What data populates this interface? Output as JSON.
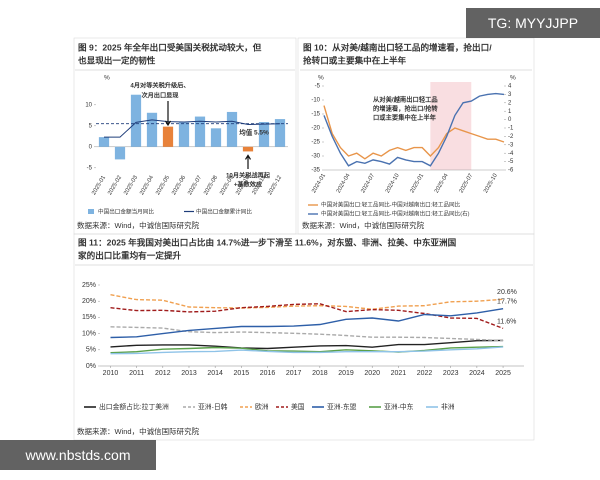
{
  "watermarks": [
    "TG: MYYJJPP",
    "www.nbstds.com"
  ],
  "chart_data": [
    {
      "type": "bar",
      "title": [
        "图 9：2025 年全年出口受美国关税扰动较大，但",
        "也显现出一定的韧性"
      ],
      "y_unit": "%",
      "categories": [
        "2025-01",
        "2025-02",
        "2025-03",
        "2025-04",
        "2025-05",
        "2025-06",
        "2025-07",
        "2025-08",
        "2025-09",
        "2025-10",
        "2025-11",
        "2025-12"
      ],
      "series": [
        {
          "name": "中国出口金额当月同比",
          "type": "bar",
          "color": "#7eb3e0",
          "colors": [
            "#7eb3e0",
            "#7eb3e0",
            "#7eb3e0",
            "#7eb3e0",
            "#e8823a",
            "#7eb3e0",
            "#7eb3e0",
            "#7eb3e0",
            "#7eb3e0",
            "#e8823a",
            "#7eb3e0",
            "#7eb3e0"
          ],
          "values": [
            2.3,
            -3.0,
            12.4,
            8.1,
            4.8,
            5.8,
            7.2,
            4.4,
            8.3,
            -1.1,
            5.9,
            6.6
          ]
        },
        {
          "name": "中国出口金额累计同比",
          "type": "line",
          "color": "#1f3d7a",
          "values": [
            2.3,
            2.3,
            5.8,
            6.4,
            6.0,
            5.9,
            6.1,
            5.9,
            6.1,
            5.3,
            5.4,
            5.5
          ]
        }
      ],
      "mean": 5.5,
      "mean_label": "均值 5.5%",
      "annotations": [
        "4月对等关税升级后、",
        "次月出口显现",
        "10月关税战再起",
        "+基数效应"
      ],
      "ylim": [
        -6,
        14
      ],
      "yticks": [
        -5,
        0,
        5,
        10
      ],
      "source": "数据来源：Wind，中诚信国际研究院"
    },
    {
      "type": "line",
      "title": [
        "图 10：从对美/越南出口轻工品的增速看，抢出口/",
        "抢转口或主要集中在上半年"
      ],
      "y_unit": "%",
      "y2_unit": "%",
      "categories": [
        "2024-01",
        null,
        null,
        "2024-04",
        null,
        null,
        "2024-07",
        null,
        null,
        "2024-10",
        null,
        null,
        "2025-01",
        null,
        null,
        "2025-04",
        null,
        null,
        "2025-07",
        null,
        null,
        "2025-10",
        null
      ],
      "series": [
        {
          "name": "中国对美国出口:轻工品同比-中国对越南出口:轻工品同比",
          "color": "#e8954a",
          "values": [
            -12,
            -22,
            -27,
            -30,
            -29,
            -31,
            -29,
            -30,
            -28,
            -27,
            -28,
            -27,
            -27,
            -30,
            -27,
            -22,
            -20,
            -21,
            -22,
            -23,
            -24,
            -24,
            -25
          ]
        },
        {
          "name": "中国对美国出口:轻工品同比-中国对越南出口:轻工品同比(右)",
          "color": "#4a72b0",
          "axis": "y2",
          "values": [
            0.5,
            -2,
            -4,
            -5.5,
            -5,
            -5.2,
            -4.8,
            -5,
            -5.3,
            -4.5,
            -4.8,
            -5,
            -5,
            -5.5,
            -4,
            -2,
            0.5,
            2,
            2.2,
            2.8,
            3,
            3.1,
            3.0
          ]
        }
      ],
      "annotations": [
        "从对美/越南出口轻工品",
        "的增速看，抢出口/抢转",
        "口或主要集中在上半年"
      ],
      "ylim": [
        -35,
        -5
      ],
      "yticks": [
        -5,
        -10,
        -15,
        -20,
        -25,
        -30,
        -35
      ],
      "y2lim": [
        -6,
        4
      ],
      "y2ticks": [
        4,
        3,
        2,
        1,
        0,
        -1,
        -2,
        -3,
        -4,
        -5,
        -6
      ],
      "source": "数据来源：Wind，中诚信国际研究院"
    },
    {
      "type": "line",
      "title": [
        "图 11：2025 年我国对美出口占比由 14.7%进一步下滑至 11.6%，对东盟、非洲、拉美、中东亚洲国",
        "家的出口比重均有一定提升"
      ],
      "x": [
        2010,
        2011,
        2012,
        2013,
        2014,
        2015,
        2016,
        2017,
        2018,
        2019,
        2020,
        2021,
        2022,
        2023,
        2024,
        2025
      ],
      "series": [
        {
          "name": "出口金额占比:拉丁美洲",
          "color": "#222222",
          "dash": false,
          "values": [
            5.9,
            6.4,
            6.5,
            6.5,
            6.1,
            5.6,
            5.4,
            5.8,
            6.2,
            6.3,
            5.8,
            6.6,
            6.6,
            7.2,
            7.8,
            7.9
          ]
        },
        {
          "name": "亚洲-日韩",
          "color": "#aaaaaa",
          "dash": true,
          "values": [
            12.1,
            11.9,
            11.7,
            10.6,
            10.3,
            10.5,
            10.3,
            10.1,
            9.8,
            9.4,
            8.9,
            8.9,
            8.8,
            8.5,
            8.2,
            7.8
          ]
        },
        {
          "name": "欧洲",
          "color": "#f0a050",
          "dash": true,
          "values": [
            22,
            20.5,
            20.3,
            18.2,
            18,
            17.9,
            18.1,
            18.5,
            18.6,
            18.4,
            17.5,
            18.5,
            18.6,
            19.8,
            20,
            20.6
          ],
          "value_labels": [
            null,
            null,
            null,
            null,
            null,
            null,
            null,
            null,
            null,
            null,
            null,
            null,
            null,
            null,
            null,
            "20.6%"
          ]
        },
        {
          "name": "美国",
          "color": "#a01c1c",
          "dash": true,
          "values": [
            18,
            17.1,
            17.2,
            16.7,
            16.9,
            18,
            18.4,
            19,
            19.2,
            16.8,
            17.4,
            17.2,
            16.2,
            14.8,
            14.7,
            11.6
          ],
          "value_labels": [
            null,
            null,
            null,
            null,
            null,
            null,
            null,
            null,
            null,
            null,
            null,
            null,
            null,
            null,
            null,
            "11.6%"
          ]
        },
        {
          "name": "亚洲-东盟",
          "color": "#2e5fa8",
          "dash": false,
          "values": [
            8.8,
            9,
            10,
            11,
            11.6,
            12.2,
            12.2,
            12.3,
            12.8,
            14.4,
            14.8,
            13.9,
            15.9,
            15.5,
            16.4,
            17.7
          ],
          "value_labels": [
            null,
            null,
            null,
            null,
            null,
            null,
            null,
            null,
            null,
            null,
            null,
            null,
            null,
            null,
            null,
            "17.7%"
          ]
        },
        {
          "name": "亚洲-中东",
          "color": "#5aa04a",
          "dash": false,
          "values": [
            4.1,
            4.4,
            5.2,
            5.4,
            5.7,
            5.5,
            4.7,
            4.6,
            4.4,
            5.0,
            4.7,
            4.3,
            4.8,
            5.6,
            5.8,
            6.0
          ]
        },
        {
          "name": "非洲",
          "color": "#8fc3e8",
          "dash": false,
          "values": [
            3.8,
            3.9,
            4.2,
            4.4,
            4.5,
            4.9,
            4.5,
            4.2,
            4.2,
            4.4,
            4.4,
            4.4,
            4.6,
            5.0,
            5.3,
            5.9
          ]
        }
      ],
      "xlim": [
        2009.6,
        2025.8
      ],
      "xticks": [
        2010,
        2011,
        2012,
        2013,
        2014,
        2015,
        2016,
        2017,
        2018,
        2019,
        2020,
        2021,
        2022,
        2023,
        2024,
        2025
      ],
      "ylim": [
        0,
        25
      ],
      "yticks": [
        {
          "value": 0,
          "label": "0%"
        },
        {
          "value": 5,
          "label": "5%"
        },
        {
          "value": 10,
          "label": "10%"
        },
        {
          "value": 15,
          "label": "15%"
        },
        {
          "value": 20,
          "label": "20%"
        },
        {
          "value": 25,
          "label": "25%"
        }
      ],
      "grid": false,
      "source": "数据来源：Wind，中诚信国际研究院"
    }
  ]
}
